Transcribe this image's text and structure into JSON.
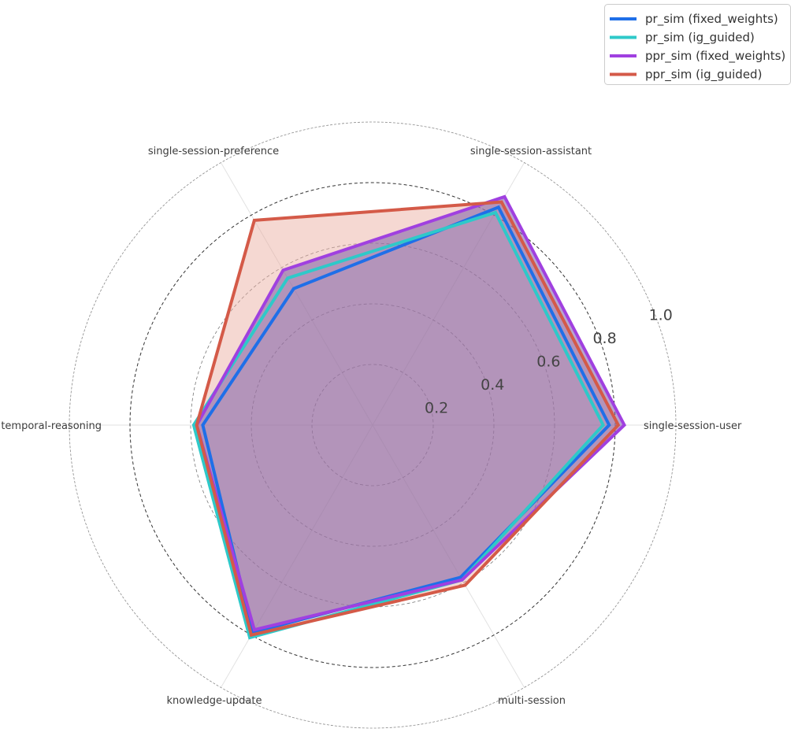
{
  "chart_data": {
    "type": "radar",
    "axes": [
      "single-session-user",
      "single-session-assistant",
      "single-session-preference",
      "temporal-reasoning",
      "knowledge-update",
      "multi-session"
    ],
    "rlim": [
      0,
      1.0
    ],
    "rticks": [
      0.2,
      0.4,
      0.6,
      0.8,
      1.0
    ],
    "rtick_labels": [
      "0.2",
      "0.4",
      "0.6",
      "0.8",
      "1.0"
    ],
    "legend_position": "top-right",
    "series": [
      {
        "name": "pr_sim (fixed_weights)",
        "color": "#1f6fe8",
        "fill": false,
        "values": [
          0.78,
          0.83,
          0.52,
          0.56,
          0.79,
          0.58
        ]
      },
      {
        "name": "pr_sim (ig_guided)",
        "color": "#2ec9c9",
        "fill": false,
        "values": [
          0.76,
          0.81,
          0.56,
          0.59,
          0.81,
          0.59
        ]
      },
      {
        "name": "ppr_sim (fixed_weights)",
        "color": "#a040e0",
        "fill": true,
        "fill_color": "#7b5ca5",
        "fill_opacity": 0.55,
        "values": [
          0.83,
          0.87,
          0.59,
          0.58,
          0.78,
          0.59
        ]
      },
      {
        "name": "ppr_sim (ig_guided)",
        "color": "#d45a48",
        "fill": true,
        "fill_color": "#e8a89c",
        "fill_opacity": 0.45,
        "values": [
          0.81,
          0.85,
          0.78,
          0.58,
          0.8,
          0.61
        ]
      }
    ]
  }
}
